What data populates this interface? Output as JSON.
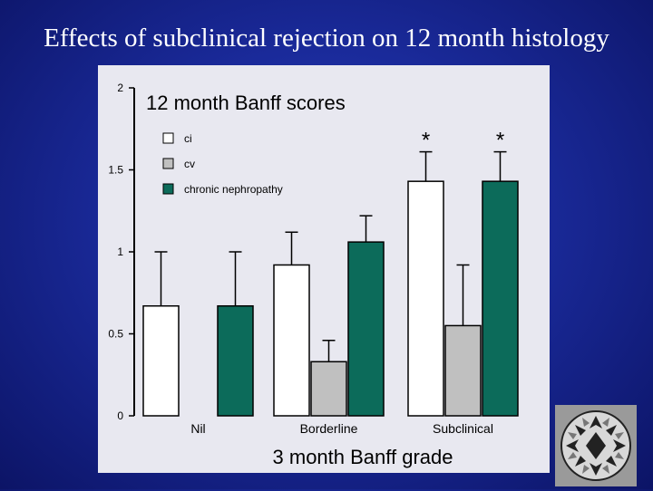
{
  "slide": {
    "title": "Effects of subclinical rejection on 12 month histology"
  },
  "chart_data": {
    "type": "bar",
    "title": "12 month Banff scores",
    "xlabel": "3 month Banff grade",
    "ylabel": "",
    "categories": [
      "Nil",
      "Borderline",
      "Subclinical"
    ],
    "ylim": [
      0,
      2
    ],
    "yticks": [
      0,
      0.5,
      1,
      1.5,
      2
    ],
    "ytick_labels": [
      "0",
      "0.5",
      "1",
      "1.5",
      "2"
    ],
    "grid": false,
    "legend": "top-left",
    "series": [
      {
        "name": "ci",
        "color": "#ffffff",
        "values": [
          0.67,
          0.92,
          1.43
        ],
        "error_upper": [
          0.33,
          0.2,
          0.18
        ]
      },
      {
        "name": "cv",
        "color": "#c0c0c0",
        "values": [
          0.0,
          0.33,
          0.55
        ],
        "error_upper": [
          0.0,
          0.13,
          0.37
        ]
      },
      {
        "name": "chronic nephropathy",
        "color": "#0c6b5a",
        "values": [
          0.67,
          1.06,
          1.43
        ],
        "error_upper": [
          0.33,
          0.16,
          0.18
        ]
      }
    ],
    "annotations": [
      {
        "text": "*",
        "category": "Subclinical",
        "series": "ci"
      },
      {
        "text": "*",
        "category": "Subclinical",
        "series": "chronic nephropathy"
      }
    ]
  }
}
